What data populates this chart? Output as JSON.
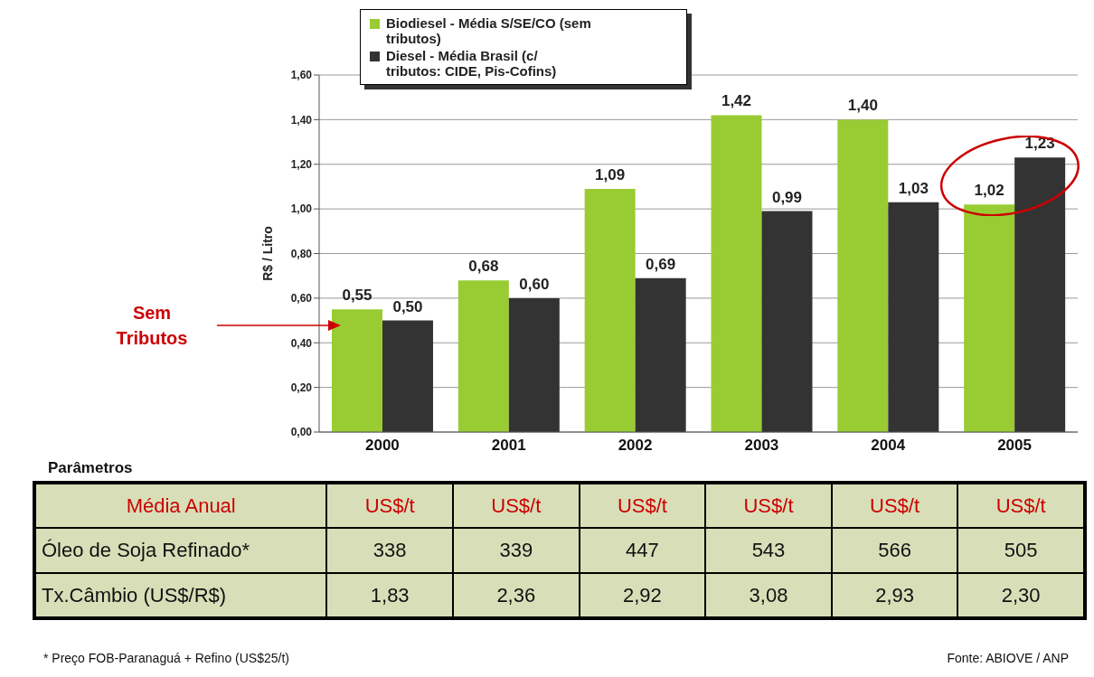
{
  "chart_data": [
    {
      "type": "bar",
      "categories": [
        "2000",
        "2001",
        "2002",
        "2003",
        "2004",
        "2005"
      ],
      "series": [
        {
          "name": "Biodiesel - Média S/SE/CO (sem tributos)",
          "color": "#99cc33",
          "values": [
            0.55,
            0.68,
            1.09,
            1.42,
            1.4,
            1.02
          ],
          "value_labels": [
            "0,55",
            "0,68",
            "1,09",
            "1,42",
            "1,40",
            "1,02"
          ]
        },
        {
          "name": "Diesel - Média Brasil (c/ tributos: CIDE, Pis-Cofins)",
          "color": "#333333",
          "values": [
            0.5,
            0.6,
            0.69,
            0.99,
            1.03,
            1.23
          ],
          "value_labels": [
            "0,50",
            "0,60",
            "0,69",
            "0,99",
            "1,03",
            "1,23"
          ]
        }
      ],
      "ylabel": "R$ / Litro",
      "ylim": [
        0,
        1.6
      ],
      "yticks": [
        {
          "value": 0,
          "label": "0,00"
        },
        {
          "value": 0.2,
          "label": "0,20"
        },
        {
          "value": 0.4,
          "label": "0,40"
        },
        {
          "value": 0.6,
          "label": "0,60"
        },
        {
          "value": 0.8,
          "label": "0,80"
        },
        {
          "value": 1,
          "label": "1,00"
        },
        {
          "value": 1.2,
          "label": "1,20"
        },
        {
          "value": 1.4,
          "label": "1,40"
        },
        {
          "value": 1.6,
          "label": "1,60"
        }
      ],
      "grid": "y",
      "legend": "top left",
      "annotations": [
        "Sem Tributos",
        "* Preço FOB-Paranaguá + Refino (US$25/t)",
        "Fonte: ABIOVE / ANP"
      ]
    },
    {
      "type": "other",
      "title": "Parâmetros",
      "y_categories": [
        "Média Anual",
        "Óleo de Soja Refinado*",
        "Tx.Câmbio (US$/R$)"
      ],
      "cell_labels": [
        [
          "US$/t",
          "US$/t",
          "US$/t",
          "US$/t",
          "US$/t",
          "US$/t"
        ],
        [
          "338",
          "339",
          "447",
          "543",
          "566",
          "505"
        ],
        [
          "1,83",
          "2,36",
          "2,92",
          "3,08",
          "2,93",
          "2,30"
        ]
      ]
    }
  ]
}
